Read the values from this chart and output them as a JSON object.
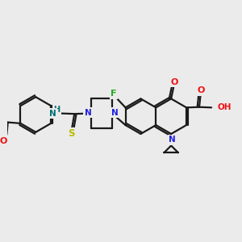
{
  "bg_color": "#ebebeb",
  "bond_color": "#1a1a1a",
  "bond_lw": 1.6,
  "doff": 0.008,
  "colors": {
    "N": "#2020dd",
    "O": "#ee1111",
    "F": "#22aa22",
    "S": "#bbbb00",
    "H": "#007070",
    "C": "#1a1a1a"
  },
  "figsize": [
    3.0,
    3.0
  ],
  "dpi": 100,
  "xlim": [
    0.0,
    1.0
  ],
  "ylim": [
    0.05,
    0.95
  ]
}
